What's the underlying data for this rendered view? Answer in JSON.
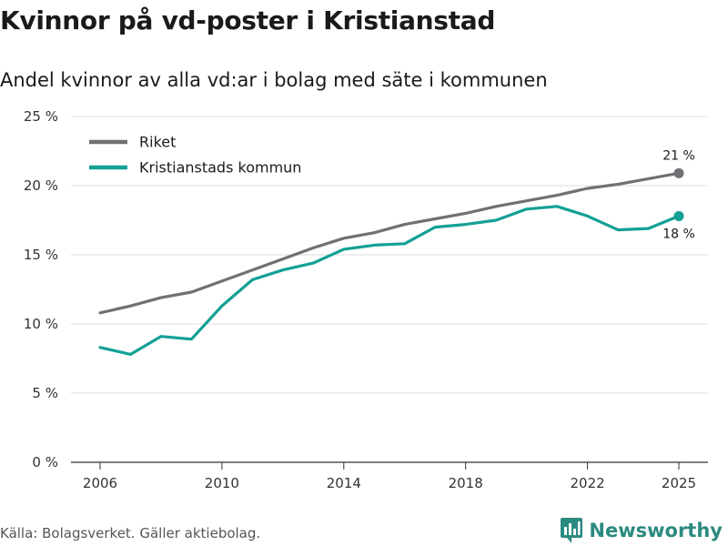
{
  "title": "Kvinnor på vd-poster i Kristianstad",
  "subtitle": "Andel kvinnor av alla vd:ar i bolag med säte i kommunen",
  "source": "Källa: Bolagsverket. Gäller aktiebolag.",
  "brand": {
    "name": "Newsworthy",
    "icon": "bar-chart-logo-icon",
    "color": "#2b8a80"
  },
  "chart_data": {
    "type": "line",
    "title": "Kvinnor på vd-poster i Kristianstad",
    "subtitle": "Andel kvinnor av alla vd:ar i bolag med säte i kommunen",
    "xlabel": "",
    "ylabel": "",
    "x": [
      2006,
      2007,
      2008,
      2009,
      2010,
      2011,
      2012,
      2013,
      2014,
      2015,
      2016,
      2017,
      2018,
      2019,
      2020,
      2021,
      2022,
      2023,
      2024,
      2025
    ],
    "xlim": [
      2006,
      2025
    ],
    "x_ticks": [
      2006,
      2010,
      2014,
      2018,
      2022,
      2025
    ],
    "ylim": [
      0,
      25
    ],
    "y_ticks": [
      {
        "value": 0,
        "label": "0 %"
      },
      {
        "value": 5,
        "label": "5 %"
      },
      {
        "value": 10,
        "label": "10 %"
      },
      {
        "value": 15,
        "label": "15 %"
      },
      {
        "value": 20,
        "label": "20 %"
      },
      {
        "value": 25,
        "label": "25 %"
      }
    ],
    "grid": true,
    "legend_position": "top-left",
    "series": [
      {
        "name": "Riket",
        "color": "#707075",
        "values": [
          10.8,
          11.3,
          11.9,
          12.3,
          13.1,
          13.9,
          14.7,
          15.5,
          16.2,
          16.6,
          17.2,
          17.6,
          18.0,
          18.5,
          18.9,
          19.3,
          19.8,
          20.1,
          20.5,
          20.9
        ],
        "end_label": "21 %",
        "end_label_position": "above"
      },
      {
        "name": "Kristianstads kommun",
        "color": "#13a095",
        "values": [
          8.3,
          7.8,
          9.1,
          8.9,
          11.3,
          13.2,
          13.9,
          14.4,
          15.4,
          15.7,
          15.8,
          17.0,
          17.2,
          17.5,
          18.3,
          18.5,
          17.8,
          16.8,
          16.9,
          17.8
        ],
        "end_label": "18 %",
        "end_label_position": "below"
      }
    ]
  }
}
